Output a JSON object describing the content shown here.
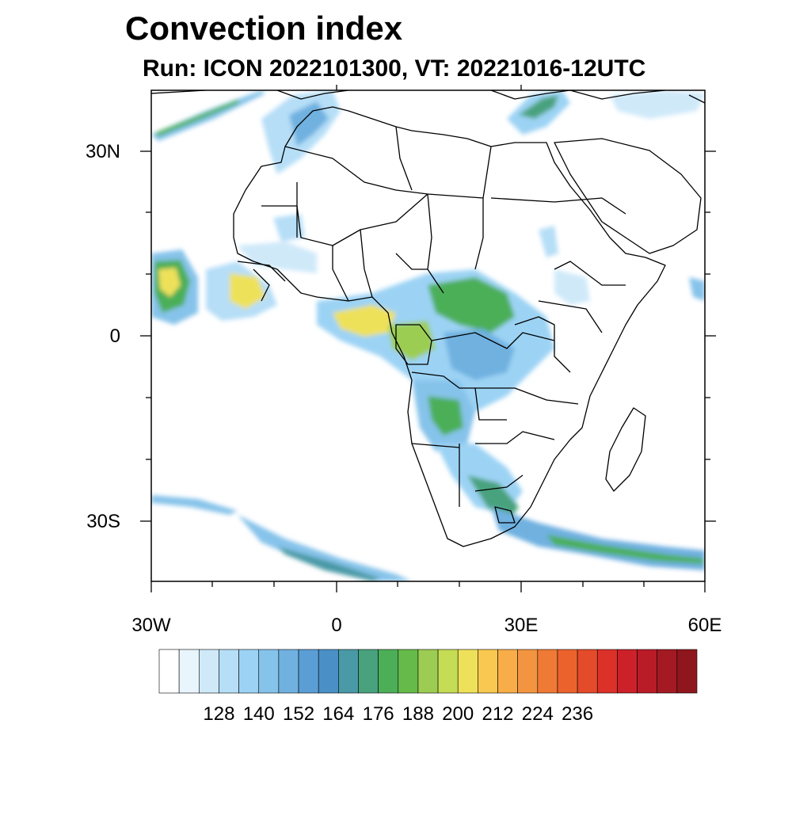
{
  "title": "Convection index",
  "subtitle": "Run: ICON 2022101300,  VT: 20221016-12UTC",
  "axes": {
    "lat_labels": [
      "30N",
      "0",
      "30S"
    ],
    "lon_labels": [
      "30W",
      "0",
      "30E",
      "60E"
    ]
  },
  "colorbar": {
    "labels": [
      "128",
      "140",
      "152",
      "164",
      "176",
      "188",
      "200",
      "212",
      "224",
      "236"
    ],
    "colors": [
      "#ffffff",
      "#e8f5fd",
      "#cfe9f9",
      "#b6def7",
      "#9cd3f4",
      "#86c3ea",
      "#70b1e0",
      "#5b9ed6",
      "#4a90c7",
      "#4a99a6",
      "#48a27e",
      "#4caf58",
      "#66ba49",
      "#9ccd52",
      "#c5dc55",
      "#eee15a",
      "#f8c850",
      "#f8ad48",
      "#f39540",
      "#ef7a35",
      "#ec622d",
      "#e44b2a",
      "#dc3129",
      "#cc2129",
      "#b91c27",
      "#a41a22",
      "#8f161d"
    ]
  },
  "map": {
    "land_color": "#ffffff",
    "border_color": "#000000"
  }
}
